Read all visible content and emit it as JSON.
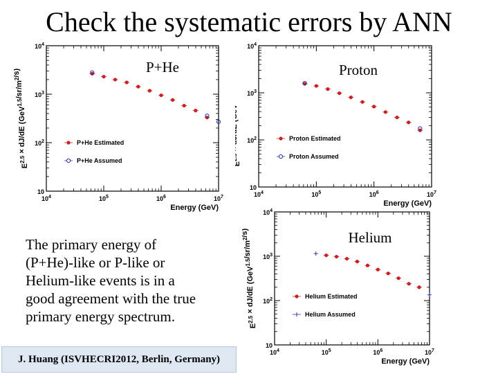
{
  "slide": {
    "title": "Check the systematic errors by ANN",
    "description_lines": [
      "The primary energy of",
      "(P+He)-like or P-like or",
      "Helium-like  events  is in a",
      "good agreement with the true",
      "primary energy spectrum."
    ],
    "footer": "J. Huang  (ISVHECRI2012,  Berlin,  Germany)"
  },
  "colors": {
    "estimated": "#cc2020",
    "assumed": "#2233aa",
    "footer_bg": "#dde8f2"
  },
  "chart_data": [
    {
      "id": "phe",
      "type": "scatter",
      "title": "P+He",
      "xlabel": "Energy (GeV)",
      "ylabel": "E^2.5 × dJ/dE (GeV^1.5/sr/m^2/s)",
      "xscale": "log",
      "yscale": "log",
      "xlim": [
        10000,
        10000000
      ],
      "ylim": [
        10,
        10000
      ],
      "x_ticks": [
        "10^4",
        "10^5",
        "10^6",
        "10^7"
      ],
      "y_ticks": [
        "10",
        "10^2",
        "10^3",
        "10^4"
      ],
      "legend_position": "bottom-left",
      "series": [
        {
          "name": "P+He Estimated",
          "marker": "filled-circle",
          "x": [
            63000,
            100000,
            158000,
            251000,
            398000,
            631000,
            1000000,
            1585000,
            2512000,
            3981000,
            6310000
          ],
          "y": [
            2650,
            2300,
            2000,
            1750,
            1430,
            1180,
            950,
            760,
            580,
            460,
            330
          ]
        },
        {
          "name": "P+He Assumed",
          "marker": "open-circle",
          "x": [
            63000,
            6310000,
            10000000
          ],
          "y": [
            2800,
            360,
            270
          ]
        }
      ]
    },
    {
      "id": "proton",
      "type": "scatter",
      "title": "Proton",
      "xlabel": "Energy (GeV)",
      "ylabel": "E^2.5 × dJ/dE (GeV^1.5/sr/m^2/s)",
      "xscale": "log",
      "yscale": "log",
      "xlim": [
        10000,
        10000000
      ],
      "ylim": [
        10,
        10000
      ],
      "x_ticks": [
        "10^4",
        "10^5",
        "10^6",
        "10^7"
      ],
      "y_ticks": [
        "10",
        "10^2",
        "10^3",
        "10^4"
      ],
      "legend_position": "bottom-left",
      "series": [
        {
          "name": "Proton Estimated",
          "marker": "filled-circle",
          "x": [
            63000,
            100000,
            158000,
            251000,
            398000,
            631000,
            1000000,
            1585000,
            2512000,
            3981000,
            6310000
          ],
          "y": [
            1550,
            1400,
            1200,
            980,
            800,
            640,
            510,
            390,
            300,
            235,
            160
          ]
        },
        {
          "name": "Proton Assumed",
          "marker": "open-circle",
          "x": [
            63000,
            6310000
          ],
          "y": [
            1600,
            175
          ]
        }
      ]
    },
    {
      "id": "helium",
      "type": "scatter",
      "title": "Helium",
      "xlabel": "Energy (GeV)",
      "ylabel": "E^2.5 × dJ/dE (GeV^1.5/sr/m^2/s)",
      "xscale": "log",
      "yscale": "log",
      "xlim": [
        10000,
        10000000
      ],
      "ylim": [
        10,
        10000
      ],
      "x_ticks": [
        "10^4",
        "10^5",
        "10^6",
        "10^7"
      ],
      "y_ticks": [
        "10",
        "10^2",
        "10^3",
        "10^4"
      ],
      "legend_position": "bottom-left",
      "series": [
        {
          "name": "Helium Estimated",
          "marker": "filled-circle",
          "x": [
            100000,
            158000,
            251000,
            398000,
            631000,
            1000000,
            1585000,
            2512000,
            3981000,
            6310000
          ],
          "y": [
            1050,
            980,
            880,
            760,
            620,
            500,
            410,
            320,
            240,
            200
          ]
        },
        {
          "name": "Helium Assumed",
          "marker": "plus",
          "x": [
            63000,
            10000000
          ],
          "y": [
            1150,
            135
          ]
        }
      ]
    }
  ]
}
